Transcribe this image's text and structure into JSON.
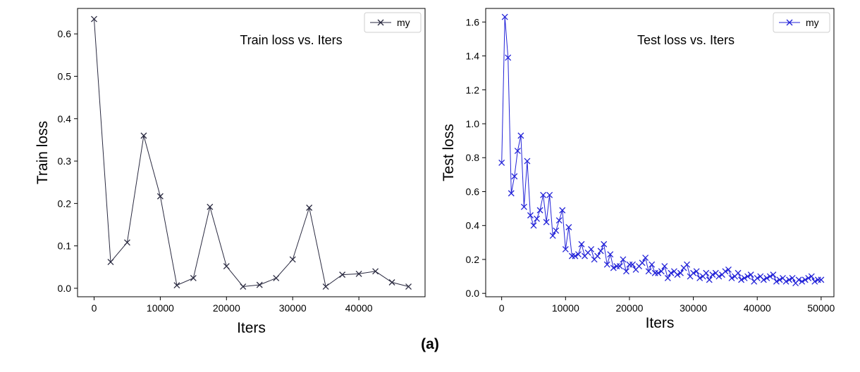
{
  "caption": "(a)",
  "chart_data": [
    {
      "type": "line",
      "title": "Train loss vs. Iters",
      "xlabel": "Iters",
      "ylabel": "Train loss",
      "xlim": [
        -2500,
        50000
      ],
      "ylim": [
        -0.02,
        0.66
      ],
      "xticks": [
        0,
        10000,
        20000,
        30000,
        40000
      ],
      "xtick_labels": [
        "0",
        "10000",
        "20000",
        "30000",
        "40000"
      ],
      "yticks": [
        0.0,
        0.1,
        0.2,
        0.3,
        0.4,
        0.5,
        0.6
      ],
      "ytick_labels": [
        "0.0",
        "0.1",
        "0.2",
        "0.3",
        "0.4",
        "0.5",
        "0.6"
      ],
      "legend": "top-right",
      "grid": false,
      "series": [
        {
          "name": "my",
          "color": "#2a2a40",
          "marker": "x",
          "x": [
            0,
            2500,
            5000,
            7500,
            10000,
            12500,
            15000,
            17500,
            20000,
            22500,
            25000,
            27500,
            30000,
            32500,
            35000,
            37500,
            40000,
            42500,
            45000,
            47500
          ],
          "y": [
            0.635,
            0.062,
            0.108,
            0.36,
            0.217,
            0.007,
            0.024,
            0.192,
            0.052,
            0.004,
            0.008,
            0.024,
            0.068,
            0.19,
            0.004,
            0.032,
            0.034,
            0.04,
            0.014,
            0.004
          ]
        }
      ]
    },
    {
      "type": "line",
      "title": "Test loss vs.  Iters",
      "xlabel": "Iters",
      "ylabel": "Test loss",
      "xlim": [
        -2500,
        52000
      ],
      "ylim": [
        -0.02,
        1.68
      ],
      "xticks": [
        0,
        10000,
        20000,
        30000,
        40000,
        50000
      ],
      "xtick_labels": [
        "0",
        "10000",
        "20000",
        "30000",
        "40000",
        "50000"
      ],
      "yticks": [
        0.0,
        0.2,
        0.4,
        0.6,
        0.8,
        1.0,
        1.2,
        1.4,
        1.6
      ],
      "ytick_labels": [
        "0.0",
        "0.2",
        "0.4",
        "0.6",
        "0.8",
        "1.0",
        "1.2",
        "1.4",
        "1.6"
      ],
      "legend": "top-right",
      "grid": false,
      "series": [
        {
          "name": "my",
          "color": "#2323d8",
          "marker": "x",
          "x": [
            0,
            500,
            1000,
            1500,
            2000,
            2500,
            3000,
            3500,
            4000,
            4500,
            5000,
            5500,
            6000,
            6500,
            7000,
            7500,
            8000,
            8500,
            9000,
            9500,
            10000,
            10500,
            11000,
            11500,
            12000,
            12500,
            13000,
            13500,
            14000,
            14500,
            15000,
            15500,
            16000,
            16500,
            17000,
            17500,
            18000,
            18500,
            19000,
            19500,
            20000,
            20500,
            21000,
            21500,
            22000,
            22500,
            23000,
            23500,
            24000,
            24500,
            25000,
            25500,
            26000,
            26500,
            27000,
            27500,
            28000,
            28500,
            29000,
            29500,
            30000,
            30500,
            31000,
            31500,
            32000,
            32500,
            33000,
            33500,
            34000,
            34500,
            35000,
            35500,
            36000,
            36500,
            37000,
            37500,
            38000,
            38500,
            39000,
            39500,
            40000,
            40500,
            41000,
            41500,
            42000,
            42500,
            43000,
            43500,
            44000,
            44500,
            45000,
            45500,
            46000,
            46500,
            47000,
            47500,
            48000,
            48500,
            49000,
            49500,
            50000
          ],
          "y": [
            0.77,
            1.63,
            1.39,
            0.59,
            0.69,
            0.84,
            0.93,
            0.51,
            0.78,
            0.46,
            0.4,
            0.44,
            0.49,
            0.58,
            0.42,
            0.58,
            0.34,
            0.37,
            0.43,
            0.49,
            0.26,
            0.39,
            0.22,
            0.22,
            0.23,
            0.29,
            0.22,
            0.24,
            0.26,
            0.2,
            0.22,
            0.25,
            0.29,
            0.17,
            0.23,
            0.15,
            0.16,
            0.16,
            0.2,
            0.13,
            0.17,
            0.17,
            0.14,
            0.16,
            0.18,
            0.21,
            0.13,
            0.17,
            0.12,
            0.12,
            0.13,
            0.16,
            0.09,
            0.12,
            0.13,
            0.11,
            0.12,
            0.15,
            0.17,
            0.1,
            0.12,
            0.13,
            0.09,
            0.1,
            0.12,
            0.08,
            0.11,
            0.12,
            0.1,
            0.11,
            0.13,
            0.14,
            0.09,
            0.1,
            0.12,
            0.08,
            0.09,
            0.1,
            0.11,
            0.07,
            0.09,
            0.1,
            0.08,
            0.09,
            0.1,
            0.11,
            0.07,
            0.08,
            0.09,
            0.07,
            0.08,
            0.09,
            0.06,
            0.08,
            0.07,
            0.08,
            0.09,
            0.1,
            0.07,
            0.08,
            0.08
          ]
        }
      ]
    }
  ]
}
